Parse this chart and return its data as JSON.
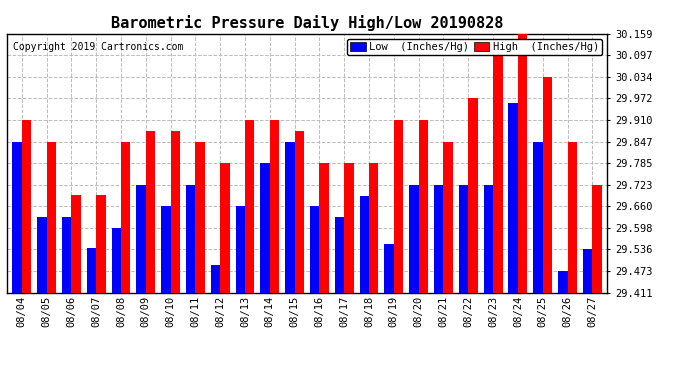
{
  "title": "Barometric Pressure Daily High/Low 20190828",
  "copyright": "Copyright 2019 Cartronics.com",
  "legend_low": "Low  (Inches/Hg)",
  "legend_high": "High  (Inches/Hg)",
  "dates": [
    "08/04",
    "08/05",
    "08/06",
    "08/07",
    "08/08",
    "08/09",
    "08/10",
    "08/11",
    "08/12",
    "08/13",
    "08/14",
    "08/15",
    "08/16",
    "08/17",
    "08/18",
    "08/19",
    "08/20",
    "08/21",
    "08/22",
    "08/23",
    "08/24",
    "08/25",
    "08/26",
    "08/27"
  ],
  "low_values": [
    29.847,
    29.628,
    29.628,
    29.54,
    29.598,
    29.723,
    29.66,
    29.723,
    29.49,
    29.66,
    29.785,
    29.847,
    29.66,
    29.628,
    29.69,
    29.55,
    29.723,
    29.723,
    29.723,
    29.723,
    29.96,
    29.847,
    29.473,
    29.536
  ],
  "high_values": [
    29.91,
    29.847,
    29.692,
    29.692,
    29.847,
    29.878,
    29.878,
    29.847,
    29.785,
    29.91,
    29.91,
    29.878,
    29.785,
    29.785,
    29.785,
    29.91,
    29.91,
    29.847,
    29.972,
    30.097,
    30.159,
    30.034,
    29.847,
    29.723
  ],
  "ylim_min": 29.411,
  "ylim_max": 30.159,
  "yticks": [
    29.411,
    29.473,
    29.536,
    29.598,
    29.66,
    29.723,
    29.785,
    29.847,
    29.91,
    29.972,
    30.034,
    30.097,
    30.159
  ],
  "bar_width": 0.38,
  "low_color": "#0000ff",
  "high_color": "#ff0000",
  "bg_color": "#ffffff",
  "grid_color": "#bbbbbb",
  "title_fontsize": 11,
  "tick_fontsize": 7.5,
  "legend_fontsize": 7.5
}
